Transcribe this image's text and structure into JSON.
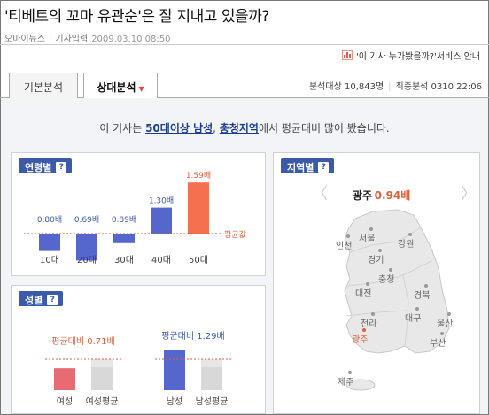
{
  "article": {
    "title": "'티베트의 꼬마 유관순'은 잘 지내고 있을까?",
    "source": "오마이뉴스",
    "date_label": "기사입력",
    "date": "2009.03.10 08:50",
    "who_read_service": "'이 기사 누가봤을까?'서비스 안내"
  },
  "tabs": [
    {
      "label": "기본분석"
    },
    {
      "label": "상대분석",
      "caret": "▼"
    }
  ],
  "stats": {
    "target_label": "분석대상",
    "target_value": "10,843명",
    "last_label": "최종분석",
    "last_value": "0310 22:06"
  },
  "summary": {
    "prefix": "이 기사는 ",
    "highlight1": "50대이상 남성",
    "comma": ", ",
    "highlight2": "충청지역",
    "suffix": "에서 평균대비 많이 봤습니다."
  },
  "age_panel": {
    "title": "연령별",
    "help": "?",
    "avg_label": "평균값"
  },
  "sex_panel": {
    "title": "성별",
    "help": "?"
  },
  "region_panel": {
    "title": "지역별",
    "help": "?",
    "selected_region": "광주",
    "selected_value": "0.94배",
    "prev_arrow": "〈",
    "next_arrow": "〉",
    "regions": [
      {
        "name": "인천"
      },
      {
        "name": "서울"
      },
      {
        "name": "강원"
      },
      {
        "name": "경기"
      },
      {
        "name": "충청"
      },
      {
        "name": "대전"
      },
      {
        "name": "경북"
      },
      {
        "name": "전라"
      },
      {
        "name": "대구"
      },
      {
        "name": "울산"
      },
      {
        "name": "광주"
      },
      {
        "name": "부산"
      },
      {
        "name": "제주"
      }
    ]
  },
  "chart_data": [
    {
      "type": "bar",
      "title": "연령별",
      "categories": [
        "10대",
        "20대",
        "30대",
        "40대",
        "50대"
      ],
      "values": [
        0.8,
        0.69,
        0.89,
        1.3,
        1.59
      ],
      "value_labels": [
        "0.80배",
        "0.69배",
        "0.89배",
        "1.30배",
        "1.59배"
      ],
      "baseline": 1.0,
      "baseline_label": "평균값",
      "highlight_color": "#f4704e",
      "bar_color": "#5566cc"
    },
    {
      "type": "bar",
      "title": "성별",
      "groups": [
        {
          "label": "평균대비 0.71배",
          "value": 0.71,
          "categories": [
            "여성",
            "여성평균"
          ],
          "color": "#e86a72",
          "label_color": "#e0603a"
        },
        {
          "label": "평균대비 1.29배",
          "value": 1.29,
          "categories": [
            "남성",
            "남성평균"
          ],
          "color": "#5566cc",
          "label_color": "#3b5aa8"
        }
      ],
      "baseline": 1.0
    }
  ]
}
